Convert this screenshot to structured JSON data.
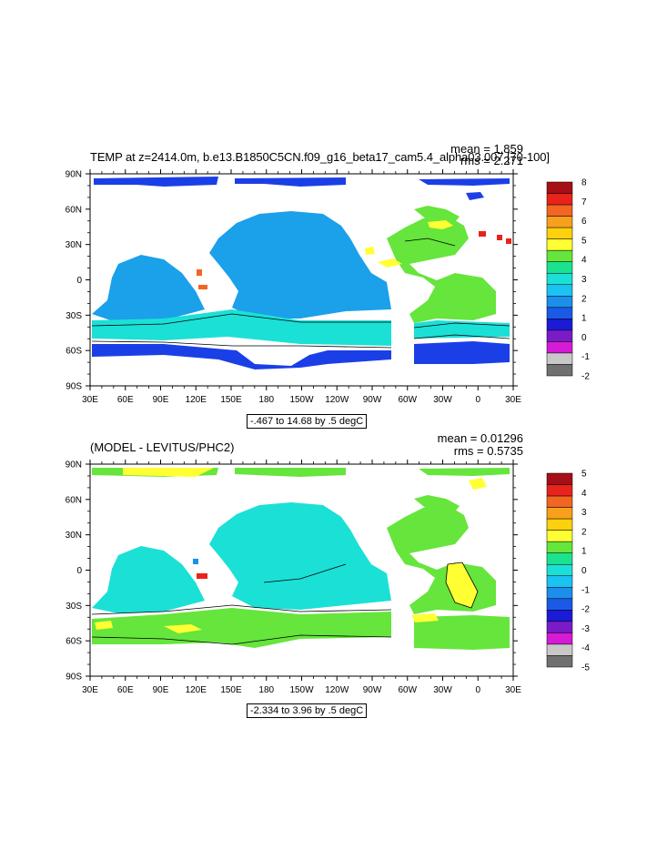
{
  "chart_data": [
    {
      "type": "heatmap",
      "title": "TEMP at z=2414.0m, b.e13.B1850C5CN.f09_g16_beta17_cam5.4_alpha03.007 [70-100]",
      "stats": [
        "mean = 1.859",
        "rms = 2.271"
      ],
      "contour_info": "-.467 to 14.68 by .5 degC",
      "x_ticks": [
        "30E",
        "60E",
        "90E",
        "120E",
        "150E",
        "180",
        "150W",
        "120W",
        "90W",
        "60W",
        "30W",
        "0",
        "30E"
      ],
      "y_ticks": [
        "90N",
        "60N",
        "30N",
        "0",
        "30S",
        "60S",
        "90S"
      ],
      "colorbar": {
        "labels": [
          "8",
          "7",
          "6",
          "5",
          "4",
          "3",
          "2",
          "1",
          "0",
          "-1",
          "-2"
        ],
        "colors": [
          "#A50F15",
          "#E8231B",
          "#F26522",
          "#F8A01C",
          "#FDD10D",
          "#FFFF33",
          "#66E53C",
          "#1BE28F",
          "#1BE0D6",
          "#1BC3F2",
          "#1B8FEA",
          "#1B5AE6",
          "#1B1BD6",
          "#7A1BC8",
          "#D61BD6",
          "#C8C8C8",
          "#707070"
        ]
      }
    },
    {
      "type": "heatmap",
      "title": "(MODEL - LEVITUS/PHC2)",
      "stats": [
        "mean = 0.01296",
        "rms = 0.5735"
      ],
      "contour_info": "-2.334 to 3.96 by .5 degC",
      "x_ticks": [
        "30E",
        "60E",
        "90E",
        "120E",
        "150E",
        "180",
        "150W",
        "120W",
        "90W",
        "60W",
        "30W",
        "0",
        "30E"
      ],
      "y_ticks": [
        "90N",
        "60N",
        "30N",
        "0",
        "30S",
        "60S",
        "90S"
      ],
      "colorbar": {
        "labels": [
          "5",
          "4",
          "3",
          "2",
          "1",
          "0",
          "-1",
          "-2",
          "-3",
          "-4",
          "-5"
        ],
        "colors": [
          "#A50F15",
          "#E8231B",
          "#F26522",
          "#F8A01C",
          "#FDD10D",
          "#FFFF33",
          "#66E53C",
          "#1BE28F",
          "#1BE0D6",
          "#1BC3F2",
          "#1B8FEA",
          "#1B5AE6",
          "#1B1BD6",
          "#7A1BC8",
          "#D61BD6",
          "#C8C8C8",
          "#707070"
        ]
      }
    }
  ],
  "colors": {
    "p1_pacific": "#1BA0EA",
    "p1_atlantic": "#66E53C",
    "p1_south": "#1BE0D6",
    "p1_arctic": "#1B3FE6",
    "p2_main": "#1BE0D6",
    "p2_atlantic": "#66E53C",
    "p2_anomaly": "#FFFF33"
  }
}
